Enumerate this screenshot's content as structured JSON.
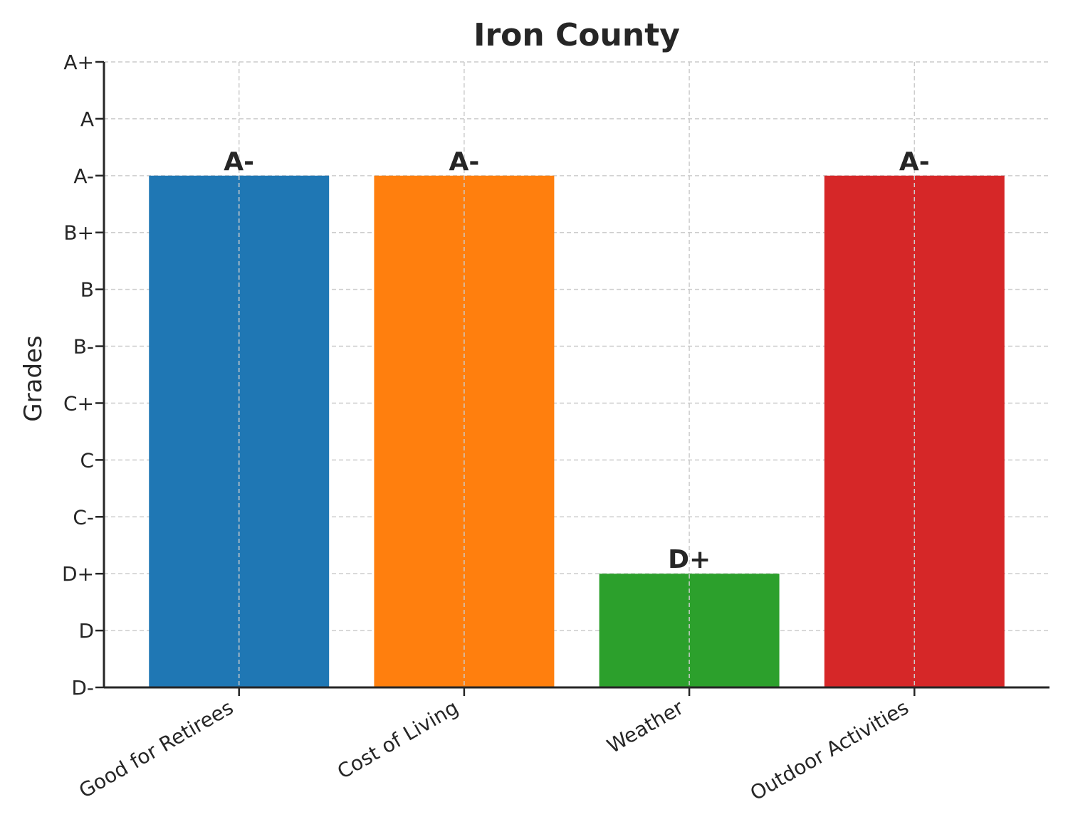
{
  "chart_data": {
    "type": "bar",
    "title": "Iron County",
    "xlabel": "",
    "ylabel": "Grades",
    "categories": [
      "Good for Retirees",
      "Cost of Living",
      "Weather",
      "Outdoor Activities"
    ],
    "values": [
      9,
      9,
      2,
      9
    ],
    "value_labels": [
      "A-",
      "A-",
      "D+",
      "A-"
    ],
    "colors": [
      "#1f77b4",
      "#ff7f0e",
      "#2ca02c",
      "#d62728"
    ],
    "y_tick_labels": [
      "D-",
      "D",
      "D+",
      "C-",
      "C",
      "C+",
      "B-",
      "B",
      "B+",
      "A-",
      "A",
      "A+"
    ],
    "ylim": [
      0,
      11
    ],
    "grid": true
  }
}
